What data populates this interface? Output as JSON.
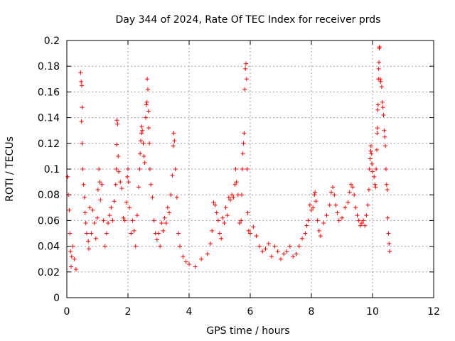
{
  "chart_data": {
    "type": "scatter",
    "title": "Day 344 of 2024, Rate Of TEC Index for receiver prds",
    "xlabel": "GPS time / hours",
    "ylabel": "ROTI / TECUs",
    "xlim": [
      0,
      12
    ],
    "ylim": [
      0,
      0.2
    ],
    "xticks": [
      0,
      2,
      4,
      6,
      8,
      10,
      12
    ],
    "yticks": [
      0,
      0.02,
      0.04,
      0.06,
      0.08,
      0.1,
      0.12,
      0.14,
      0.16,
      0.18,
      0.2
    ],
    "xtick_labels": [
      "0",
      "2",
      "4",
      "6",
      "8",
      "10",
      "12"
    ],
    "ytick_labels": [
      "0",
      "0.02",
      "0.04",
      "0.06",
      "0.08",
      "0.1",
      "0.12",
      "0.14",
      "0.16",
      "0.18",
      "0.2"
    ],
    "grid": true,
    "marker": "plus",
    "series": [
      {
        "name": "ROTI",
        "color": "#ff0000",
        "points": [
          [
            0.03,
            0.094
          ],
          [
            0.05,
            0.08
          ],
          [
            0.08,
            0.068
          ],
          [
            0.1,
            0.05
          ],
          [
            0.12,
            0.036
          ],
          [
            0.14,
            0.024
          ],
          [
            0.16,
            0.032
          ],
          [
            0.2,
            0.04
          ],
          [
            0.25,
            0.03
          ],
          [
            0.3,
            0.022
          ],
          [
            0.45,
            0.175
          ],
          [
            0.47,
            0.168
          ],
          [
            0.49,
            0.165
          ],
          [
            0.5,
            0.148
          ],
          [
            0.48,
            0.137
          ],
          [
            0.5,
            0.12
          ],
          [
            0.52,
            0.1
          ],
          [
            0.55,
            0.088
          ],
          [
            0.58,
            0.078
          ],
          [
            0.6,
            0.066
          ],
          [
            0.62,
            0.058
          ],
          [
            0.65,
            0.05
          ],
          [
            0.7,
            0.044
          ],
          [
            0.72,
            0.038
          ],
          [
            0.75,
            0.07
          ],
          [
            0.8,
            0.05
          ],
          [
            0.85,
            0.068
          ],
          [
            0.9,
            0.058
          ],
          [
            0.95,
            0.046
          ],
          [
            1.0,
            0.062
          ],
          [
            1.02,
            0.084
          ],
          [
            1.05,
            0.1
          ],
          [
            1.08,
            0.09
          ],
          [
            1.1,
            0.076
          ],
          [
            1.15,
            0.088
          ],
          [
            1.2,
            0.06
          ],
          [
            1.25,
            0.04
          ],
          [
            1.3,
            0.05
          ],
          [
            1.35,
            0.058
          ],
          [
            1.4,
            0.064
          ],
          [
            1.45,
            0.07
          ],
          [
            1.5,
            0.06
          ],
          [
            1.55,
            0.075
          ],
          [
            1.6,
            0.088
          ],
          [
            1.62,
            0.1
          ],
          [
            1.63,
            0.119
          ],
          [
            1.64,
            0.138
          ],
          [
            1.66,
            0.135
          ],
          [
            1.68,
            0.11
          ],
          [
            1.7,
            0.098
          ],
          [
            1.75,
            0.09
          ],
          [
            1.8,
            0.085
          ],
          [
            1.85,
            0.062
          ],
          [
            1.9,
            0.06
          ],
          [
            1.95,
            0.074
          ],
          [
            1.98,
            0.094
          ],
          [
            2.0,
            0.1
          ],
          [
            2.02,
            0.09
          ],
          [
            2.05,
            0.07
          ],
          [
            2.1,
            0.05
          ],
          [
            2.15,
            0.06
          ],
          [
            2.2,
            0.052
          ],
          [
            2.25,
            0.04
          ],
          [
            2.3,
            0.064
          ],
          [
            2.35,
            0.086
          ],
          [
            2.38,
            0.1
          ],
          [
            2.4,
            0.112
          ],
          [
            2.42,
            0.122
          ],
          [
            2.44,
            0.128
          ],
          [
            2.45,
            0.133
          ],
          [
            2.47,
            0.13
          ],
          [
            2.5,
            0.12
          ],
          [
            2.52,
            0.11
          ],
          [
            2.55,
            0.105
          ],
          [
            2.58,
            0.14
          ],
          [
            2.6,
            0.15
          ],
          [
            2.62,
            0.152
          ],
          [
            2.63,
            0.17
          ],
          [
            2.65,
            0.162
          ],
          [
            2.67,
            0.145
          ],
          [
            2.68,
            0.132
          ],
          [
            2.7,
            0.12
          ],
          [
            2.72,
            0.1
          ],
          [
            2.75,
            0.088
          ],
          [
            2.8,
            0.078
          ],
          [
            2.85,
            0.06
          ],
          [
            2.9,
            0.05
          ],
          [
            2.95,
            0.045
          ],
          [
            3.0,
            0.05
          ],
          [
            3.05,
            0.04
          ],
          [
            3.1,
            0.058
          ],
          [
            3.15,
            0.052
          ],
          [
            3.2,
            0.062
          ],
          [
            3.25,
            0.058
          ],
          [
            3.3,
            0.07
          ],
          [
            3.35,
            0.066
          ],
          [
            3.4,
            0.08
          ],
          [
            3.45,
            0.095
          ],
          [
            3.48,
            0.118
          ],
          [
            3.5,
            0.128
          ],
          [
            3.52,
            0.122
          ],
          [
            3.55,
            0.1
          ],
          [
            3.6,
            0.078
          ],
          [
            3.65,
            0.05
          ],
          [
            3.7,
            0.04
          ],
          [
            3.8,
            0.032
          ],
          [
            3.9,
            0.028
          ],
          [
            4.0,
            0.026
          ],
          [
            4.2,
            0.024
          ],
          [
            4.4,
            0.03
          ],
          [
            4.6,
            0.034
          ],
          [
            4.7,
            0.042
          ],
          [
            4.75,
            0.052
          ],
          [
            4.8,
            0.074
          ],
          [
            4.85,
            0.072
          ],
          [
            4.9,
            0.066
          ],
          [
            4.95,
            0.06
          ],
          [
            5.0,
            0.05
          ],
          [
            5.05,
            0.046
          ],
          [
            5.1,
            0.062
          ],
          [
            5.15,
            0.058
          ],
          [
            5.2,
            0.07
          ],
          [
            5.25,
            0.064
          ],
          [
            5.3,
            0.078
          ],
          [
            5.35,
            0.076
          ],
          [
            5.4,
            0.08
          ],
          [
            5.45,
            0.078
          ],
          [
            5.5,
            0.088
          ],
          [
            5.52,
            0.1
          ],
          [
            5.55,
            0.09
          ],
          [
            5.6,
            0.08
          ],
          [
            5.65,
            0.058
          ],
          [
            5.7,
            0.06
          ],
          [
            5.72,
            0.08
          ],
          [
            5.74,
            0.1
          ],
          [
            5.76,
            0.112
          ],
          [
            5.78,
            0.12
          ],
          [
            5.8,
            0.128
          ],
          [
            5.82,
            0.162
          ],
          [
            5.84,
            0.178
          ],
          [
            5.86,
            0.182
          ],
          [
            5.88,
            0.17
          ],
          [
            5.9,
            0.1
          ],
          [
            5.92,
            0.066
          ],
          [
            5.95,
            0.052
          ],
          [
            6.0,
            0.05
          ],
          [
            6.1,
            0.055
          ],
          [
            6.2,
            0.048
          ],
          [
            6.3,
            0.04
          ],
          [
            6.4,
            0.036
          ],
          [
            6.5,
            0.038
          ],
          [
            6.6,
            0.042
          ],
          [
            6.7,
            0.032
          ],
          [
            6.8,
            0.04
          ],
          [
            6.9,
            0.036
          ],
          [
            7.0,
            0.03
          ],
          [
            7.1,
            0.034
          ],
          [
            7.2,
            0.036
          ],
          [
            7.3,
            0.04
          ],
          [
            7.4,
            0.032
          ],
          [
            7.5,
            0.034
          ],
          [
            7.6,
            0.04
          ],
          [
            7.7,
            0.046
          ],
          [
            7.8,
            0.05
          ],
          [
            7.85,
            0.056
          ],
          [
            7.9,
            0.06
          ],
          [
            7.95,
            0.072
          ],
          [
            8.0,
            0.068
          ],
          [
            8.05,
            0.07
          ],
          [
            8.1,
            0.08
          ],
          [
            8.12,
            0.082
          ],
          [
            8.15,
            0.075
          ],
          [
            8.2,
            0.06
          ],
          [
            8.25,
            0.052
          ],
          [
            8.3,
            0.048
          ],
          [
            8.4,
            0.058
          ],
          [
            8.5,
            0.064
          ],
          [
            8.6,
            0.072
          ],
          [
            8.65,
            0.082
          ],
          [
            8.7,
            0.086
          ],
          [
            8.75,
            0.08
          ],
          [
            8.8,
            0.072
          ],
          [
            8.85,
            0.066
          ],
          [
            8.9,
            0.06
          ],
          [
            9.0,
            0.062
          ],
          [
            9.1,
            0.07
          ],
          [
            9.2,
            0.074
          ],
          [
            9.25,
            0.082
          ],
          [
            9.3,
            0.088
          ],
          [
            9.35,
            0.086
          ],
          [
            9.4,
            0.08
          ],
          [
            9.45,
            0.07
          ],
          [
            9.5,
            0.064
          ],
          [
            9.55,
            0.06
          ],
          [
            9.6,
            0.056
          ],
          [
            9.65,
            0.058
          ],
          [
            9.7,
            0.06
          ],
          [
            9.75,
            0.056
          ],
          [
            9.8,
            0.064
          ],
          [
            9.85,
            0.072
          ],
          [
            9.88,
            0.084
          ],
          [
            9.9,
            0.1
          ],
          [
            9.92,
            0.108
          ],
          [
            9.94,
            0.114
          ],
          [
            9.95,
            0.118
          ],
          [
            9.96,
            0.112
          ],
          [
            9.98,
            0.104
          ],
          [
            10.0,
            0.098
          ],
          [
            10.05,
            0.094
          ],
          [
            10.08,
            0.088
          ],
          [
            10.1,
            0.086
          ],
          [
            10.12,
            0.1
          ],
          [
            10.14,
            0.115
          ],
          [
            10.15,
            0.128
          ],
          [
            10.16,
            0.132
          ],
          [
            10.17,
            0.146
          ],
          [
            10.18,
            0.15
          ],
          [
            10.19,
            0.17
          ],
          [
            10.2,
            0.178
          ],
          [
            10.21,
            0.183
          ],
          [
            10.22,
            0.194
          ],
          [
            10.23,
            0.195
          ],
          [
            10.25,
            0.17
          ],
          [
            10.27,
            0.168
          ],
          [
            10.3,
            0.164
          ],
          [
            10.32,
            0.152
          ],
          [
            10.34,
            0.148
          ],
          [
            10.36,
            0.142
          ],
          [
            10.38,
            0.13
          ],
          [
            10.4,
            0.125
          ],
          [
            10.42,
            0.118
          ],
          [
            10.44,
            0.1
          ],
          [
            10.46,
            0.088
          ],
          [
            10.48,
            0.084
          ],
          [
            10.5,
            0.062
          ],
          [
            10.52,
            0.05
          ],
          [
            10.54,
            0.042
          ],
          [
            10.56,
            0.036
          ]
        ]
      }
    ]
  }
}
